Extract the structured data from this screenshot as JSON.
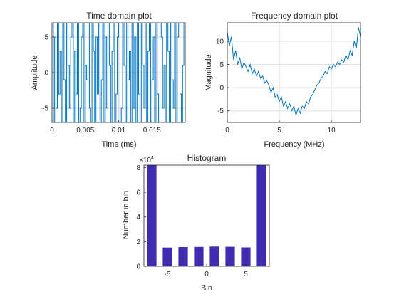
{
  "chart_data": [
    {
      "type": "line",
      "title": "Time domain plot",
      "xlabel": "Time (ms)",
      "ylabel": "Amplitude",
      "xlim": [
        0,
        0.02
      ],
      "ylim": [
        -7,
        7
      ],
      "xticks": [
        0,
        0.005,
        0.01,
        0.015
      ],
      "xtick_labels": [
        "0",
        "0.005",
        "0.01",
        "0.015"
      ],
      "yticks": [
        -5,
        0,
        5
      ],
      "ytick_labels": [
        "-5",
        "0",
        "5"
      ],
      "grid": true,
      "levels": [
        -7,
        -5,
        -3,
        -1,
        1,
        3,
        5,
        7
      ],
      "series": [
        {
          "color": "#0072BD",
          "x": [
            0,
            0.0002,
            0.0004,
            0.0006,
            0.0008,
            0.001,
            0.0012,
            0.0014,
            0.0016,
            0.0018,
            0.002,
            0.0022,
            0.0024,
            0.0026,
            0.0028,
            0.003,
            0.0032,
            0.0034,
            0.0036,
            0.0038,
            0.004,
            0.0042,
            0.0044,
            0.0046,
            0.0048,
            0.005,
            0.0052,
            0.0054,
            0.0056,
            0.0058,
            0.006,
            0.0062,
            0.0064,
            0.0066,
            0.0068,
            0.007,
            0.0072,
            0.0074,
            0.0076,
            0.0078,
            0.008,
            0.0082,
            0.0084,
            0.0086,
            0.0088,
            0.009,
            0.0092,
            0.0094,
            0.0096,
            0.0098,
            0.01,
            0.0102,
            0.0104,
            0.0106,
            0.0108,
            0.011,
            0.0112,
            0.0114,
            0.0116,
            0.0118,
            0.012,
            0.0122,
            0.0124,
            0.0126,
            0.0128,
            0.013,
            0.0132,
            0.0134,
            0.0136,
            0.0138,
            0.014,
            0.0142,
            0.0144,
            0.0146,
            0.0148,
            0.015,
            0.0152,
            0.0154,
            0.0156,
            0.0158,
            0.016,
            0.0162,
            0.0164,
            0.0166,
            0.0168,
            0.017,
            0.0172,
            0.0174,
            0.0176,
            0.0178,
            0.018,
            0.0182,
            0.0184,
            0.0186,
            0.0188,
            0.019,
            0.0192,
            0.0194,
            0.0196,
            0.0198
          ],
          "y": [
            7,
            -7,
            5,
            -5,
            7,
            -3,
            3,
            -7,
            7,
            -1,
            -7,
            7,
            1,
            -5,
            5,
            7,
            -7,
            3,
            -3,
            7,
            -7,
            -5,
            5,
            7,
            -7,
            1,
            -1,
            7,
            -5,
            -7,
            7,
            3,
            -7,
            5,
            -3,
            7,
            -7,
            -1,
            7,
            -7,
            5,
            -5,
            7,
            1,
            -7,
            3,
            7,
            -7,
            -3,
            5,
            7,
            -7,
            -5,
            7,
            1,
            -7,
            7,
            -1,
            3,
            -7,
            7,
            -5,
            5,
            -7,
            7,
            -3,
            -7,
            7,
            1,
            -5,
            7,
            -7,
            3,
            7,
            -7,
            -1,
            5,
            -7,
            7,
            -3,
            -7,
            7,
            5,
            -5,
            1,
            -7,
            7,
            3,
            -7,
            7,
            -1,
            -5,
            7,
            -7,
            5,
            7,
            -3,
            -7,
            1,
            7
          ]
        }
      ]
    },
    {
      "type": "line",
      "title": "Frequency domain plot",
      "xlabel": "Frequency (MHz)",
      "ylabel": "Magnitude",
      "xlim": [
        0,
        12.8
      ],
      "ylim": [
        -7.5,
        14
      ],
      "xticks": [
        0,
        5,
        10
      ],
      "xtick_labels": [
        "0",
        "5",
        "10"
      ],
      "yticks": [
        -5,
        0,
        5,
        10
      ],
      "ytick_labels": [
        "-5",
        "0",
        "5",
        "10"
      ],
      "grid": true,
      "series": [
        {
          "color": "#0072BD",
          "x": [
            0,
            0.2,
            0.4,
            0.6,
            0.8,
            1,
            1.2,
            1.4,
            1.6,
            1.8,
            2,
            2.2,
            2.4,
            2.6,
            2.8,
            3,
            3.2,
            3.4,
            3.6,
            3.8,
            4,
            4.2,
            4.4,
            4.6,
            4.8,
            5,
            5.2,
            5.4,
            5.6,
            5.8,
            6,
            6.2,
            6.4,
            6.6,
            6.8,
            7,
            7.2,
            7.4,
            7.6,
            7.8,
            8,
            8.2,
            8.4,
            8.6,
            8.8,
            9,
            9.2,
            9.4,
            9.6,
            9.8,
            10,
            10.2,
            10.4,
            10.6,
            10.8,
            11,
            11.2,
            11.4,
            11.6,
            11.8,
            12,
            12.2,
            12.4,
            12.6,
            12.8
          ],
          "y": [
            12,
            9,
            11,
            6,
            8,
            5,
            6.5,
            4,
            5.5,
            4.5,
            3.5,
            5,
            3,
            4,
            2.5,
            3.5,
            2,
            2.5,
            1,
            1.5,
            0.5,
            -1,
            0,
            -2,
            -1.5,
            -3,
            -2,
            -4,
            -3,
            -4.5,
            -3.5,
            -5,
            -4,
            -6,
            -4.5,
            -5.5,
            -4,
            -4.5,
            -3,
            -3.5,
            -2,
            -1.5,
            -0.5,
            0.5,
            1,
            2,
            2.5,
            3.5,
            3,
            4.5,
            4,
            5,
            4.5,
            5.5,
            5,
            6,
            5.5,
            7,
            6,
            8,
            7,
            10,
            8.5,
            13,
            11
          ]
        }
      ]
    },
    {
      "type": "bar",
      "title": "Histogram",
      "xlabel": "Bin",
      "ylabel": "Number in bin",
      "y_exponent": "×10⁴",
      "y_exponent_base": "×10",
      "y_exponent_power": "4",
      "x": [
        -7,
        -5,
        -3,
        -1,
        1,
        3,
        5,
        7
      ],
      "values": [
        82000,
        15200,
        15600,
        15700,
        16000,
        15800,
        15300,
        82000
      ],
      "xlim": [
        -8,
        8
      ],
      "ylim": [
        0,
        82000
      ],
      "xticks": [
        -5,
        0,
        5
      ],
      "xtick_labels": [
        "-5",
        "0",
        "5"
      ],
      "yticks": [
        0,
        20000,
        40000,
        60000,
        80000
      ],
      "ytick_labels": [
        "0",
        "2",
        "4",
        "6",
        "8"
      ],
      "grid": false,
      "bar_color": "#3F2CB1"
    }
  ]
}
